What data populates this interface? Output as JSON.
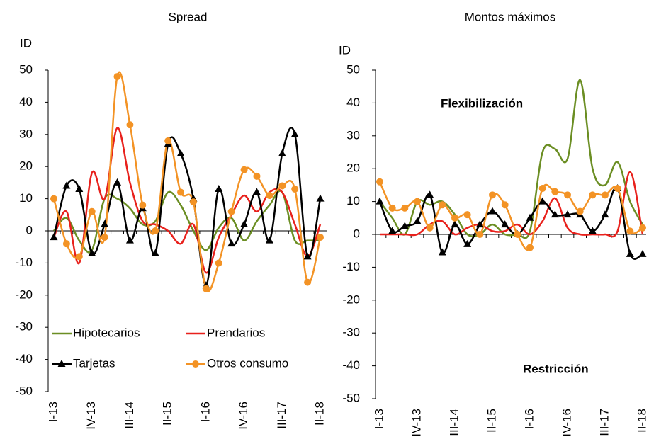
{
  "chart_data": [
    {
      "type": "line",
      "title": "Spread",
      "ylabel": "ID",
      "categories": [
        "I-13",
        null,
        null,
        "IV-13",
        null,
        null,
        "III-14",
        null,
        null,
        "II-15",
        null,
        null,
        "I-16",
        null,
        null,
        "IV-16",
        null,
        null,
        "III-17",
        null,
        null,
        "II-18"
      ],
      "ylim": [
        -50,
        50
      ],
      "yticks": [
        -50,
        -40,
        -30,
        -20,
        -10,
        0,
        10,
        20,
        30,
        40,
        50
      ],
      "legend": "lower left",
      "series": [
        {
          "name": "Hipotecarios",
          "color": "#6b8e23",
          "marker": "none",
          "values": [
            0,
            4,
            -3,
            -6,
            10,
            10,
            7,
            2,
            3,
            12,
            8,
            0,
            -6,
            1,
            4,
            -3,
            3,
            8,
            12,
            -3,
            -3,
            -3
          ]
        },
        {
          "name": "Prendarios",
          "color": "#e8211c",
          "marker": "none",
          "values": [
            -2,
            6,
            -10,
            18,
            10,
            32,
            15,
            3,
            2,
            0,
            -4,
            2,
            -13,
            -2,
            5,
            11,
            6,
            12,
            12,
            2,
            -8,
            2
          ]
        },
        {
          "name": "Tarjetas",
          "color": "#000000",
          "marker": "triangle",
          "values": [
            -2,
            14,
            13,
            -7,
            2,
            15,
            -3,
            7,
            -7,
            27,
            24,
            10,
            -17,
            13,
            -4,
            2,
            12,
            -3,
            24,
            30,
            -8,
            10
          ]
        },
        {
          "name": "Otros consumo",
          "color": "#f39325",
          "marker": "circle",
          "values": [
            10,
            -4,
            -8,
            6,
            -2,
            48,
            33,
            8,
            0,
            28,
            12,
            9,
            -18,
            -10,
            6,
            19,
            17,
            11,
            14,
            13,
            -16,
            -2
          ]
        }
      ]
    },
    {
      "type": "line",
      "title": "Montos máximos",
      "ylabel": "ID",
      "categories": [
        "I-13",
        null,
        null,
        "IV-13",
        null,
        null,
        "III-14",
        null,
        null,
        "II-15",
        null,
        null,
        "I-16",
        null,
        null,
        "IV-16",
        null,
        null,
        "III-17",
        null,
        null,
        "II-18"
      ],
      "ylim": [
        -50,
        50
      ],
      "yticks": [
        -50,
        -40,
        -30,
        -20,
        -10,
        0,
        10,
        20,
        30,
        40,
        50
      ],
      "annotations": [
        "Flexibilización",
        "Restricción"
      ],
      "series": [
        {
          "name": "Hipotecarios",
          "color": "#6b8e23",
          "marker": "none",
          "values": [
            10,
            5,
            0,
            10,
            9,
            10,
            6,
            0,
            0,
            3,
            0,
            0,
            1,
            25,
            26,
            23,
            47,
            20,
            15,
            22,
            10,
            3
          ]
        },
        {
          "name": "Prendarios",
          "color": "#e8211c",
          "marker": "none",
          "values": [
            0,
            0,
            0,
            0,
            3,
            4,
            0,
            2,
            3,
            1,
            1,
            3,
            0,
            4,
            11,
            2,
            0,
            0,
            0,
            1,
            19,
            0
          ]
        },
        {
          "name": "Tarjetas",
          "color": "#000000",
          "marker": "triangle",
          "values": [
            10,
            1,
            2.5,
            4,
            12,
            -5.5,
            3,
            -3,
            3,
            7,
            3,
            0,
            5,
            10,
            6,
            6,
            6,
            1,
            6,
            14,
            -6,
            -6
          ]
        },
        {
          "name": "Otros consumo",
          "color": "#f39325",
          "marker": "circle",
          "values": [
            16,
            8,
            8,
            10,
            2,
            9,
            5,
            6,
            0,
            12,
            9,
            0,
            -4,
            14,
            13,
            12,
            7,
            12,
            12,
            14,
            1,
            2
          ]
        }
      ]
    }
  ]
}
